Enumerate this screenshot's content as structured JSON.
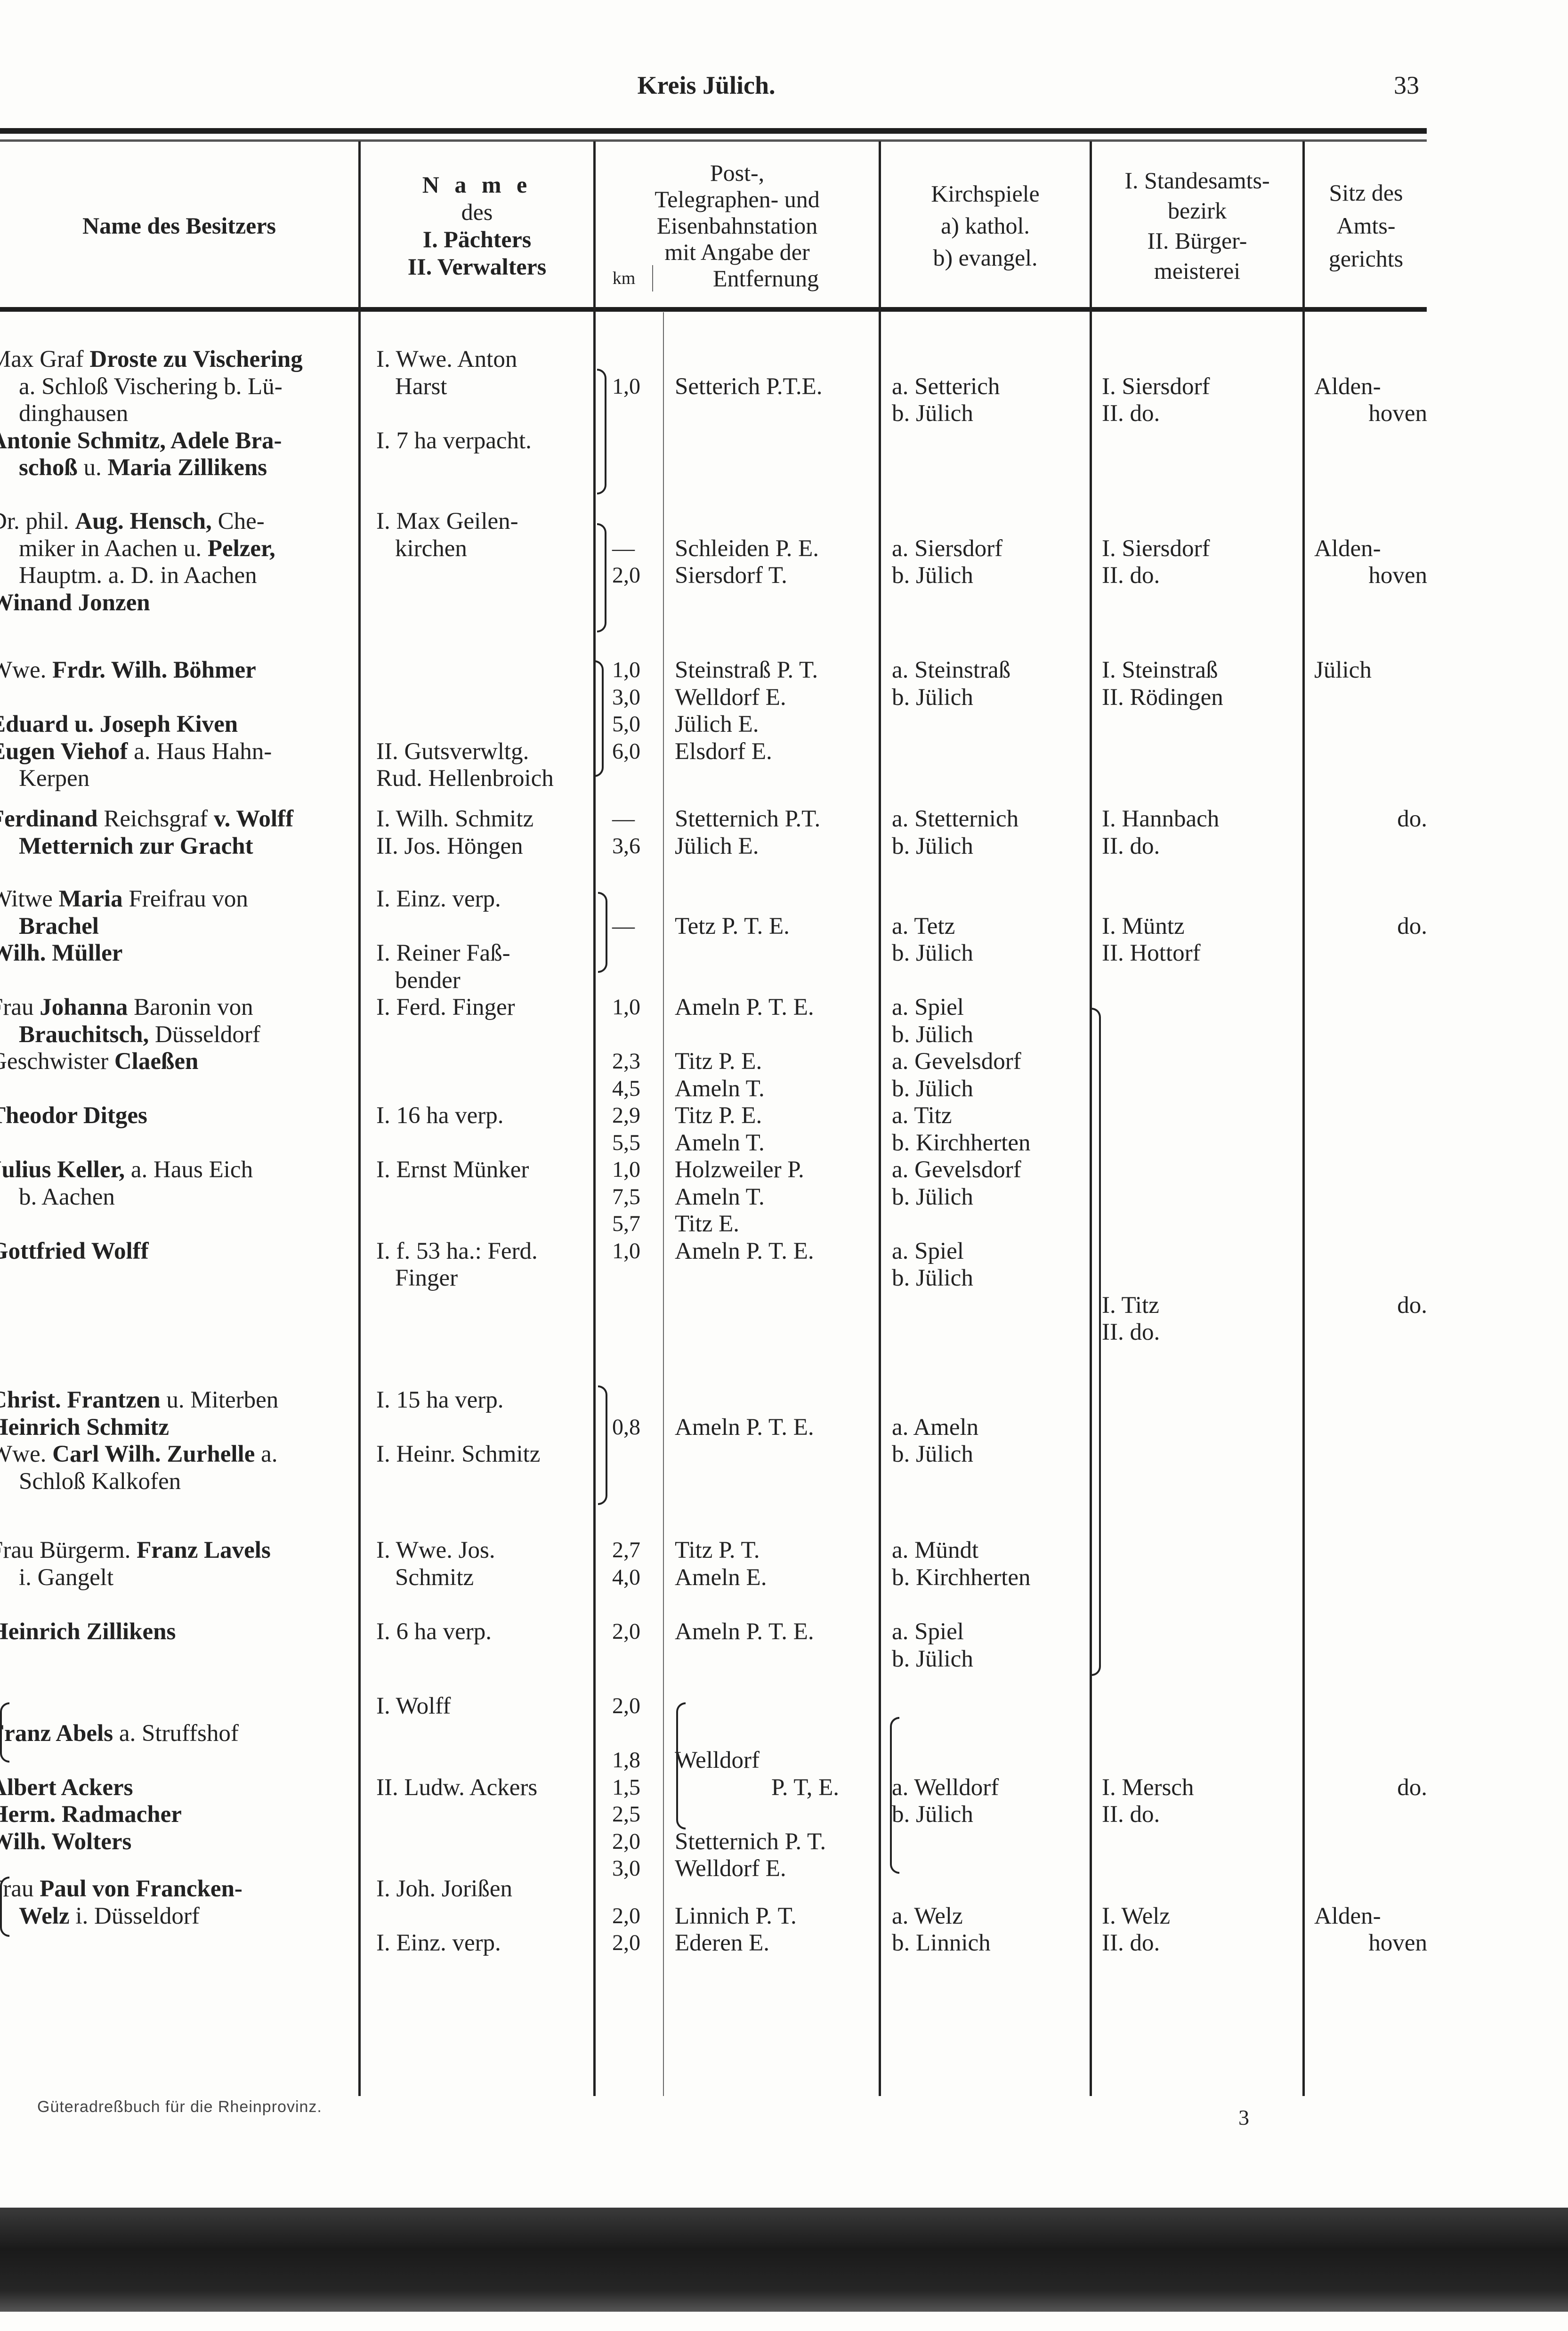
{
  "header": {
    "running_title": "Kreis Jülich.",
    "page_number": "33"
  },
  "columns": {
    "owner": [
      "Name des Besitzers"
    ],
    "tenant": [
      "N a m e",
      "des",
      "I. Pächters",
      "II. Verwalters"
    ],
    "station": [
      "Post-,",
      "Telegraphen- und",
      "Eisenbahnstation",
      "mit Angabe der"
    ],
    "station_km": "km",
    "station_distance": "Entfernung",
    "parish": [
      "Kirchspiele",
      "a) kathol.",
      "b) evangel."
    ],
    "registry": [
      "I. Standesamts-",
      "bezirk",
      "II. Bürger-",
      "meisterei"
    ],
    "court": [
      "Sitz des",
      "Amts-",
      "gerichts"
    ]
  },
  "rows": [
    {
      "owner": [
        [
          {
            "t": "Max "
          },
          {
            "t": "Graf "
          },
          {
            "t": "Droste zu Vischering",
            "b": true
          }
        ],
        [
          {
            "t": "a. Schloß Vischering b. Lü-"
          }
        ],
        [
          {
            "t": "dinghausen"
          }
        ],
        [
          {
            "t": "Antonie Schmitz, Adele Bra-",
            "b": true
          }
        ],
        [
          {
            "t": "schoß",
            "b": true
          },
          {
            "t": " u. "
          },
          {
            "t": "Maria Zillikens",
            "b": true
          }
        ]
      ],
      "tenant": [
        "I. Wwe. Anton",
        "Harst",
        "",
        "I. 7 ha verpacht."
      ],
      "km": [
        "",
        "1,0"
      ],
      "station": [
        "",
        "Setterich P.T.E."
      ],
      "parish": [
        "",
        "a. Setterich",
        "b. Jülich"
      ],
      "registry": [
        "",
        "I. Siersdorf",
        "II.    do."
      ],
      "court": [
        "",
        "Alden-",
        "hoven"
      ]
    },
    {
      "owner": [
        [
          {
            "t": "Dr. phil. "
          },
          {
            "t": "Aug. Hensch,",
            "b": true
          },
          {
            "t": " Che-"
          }
        ],
        [
          {
            "t": "miker in Aachen u. "
          },
          {
            "t": "Pelzer,",
            "b": true
          }
        ],
        [
          {
            "t": "Hauptm. a. D. in Aachen"
          }
        ],
        [
          {
            "t": "Winand Jonzen",
            "b": true
          }
        ]
      ],
      "tenant": [
        "I. Max Geilen-",
        "kirchen"
      ],
      "km": [
        "",
        "—",
        "2,0"
      ],
      "station": [
        "",
        "Schleiden P. E.",
        "Siersdorf T."
      ],
      "parish": [
        "",
        "a. Siersdorf",
        "b. Jülich"
      ],
      "registry": [
        "",
        "I. Siersdorf",
        "II.    do."
      ],
      "court": [
        "",
        "Alden-",
        "hoven"
      ]
    },
    {
      "owner": [
        [
          {
            "t": "Wwe. "
          },
          {
            "t": "Frdr. Wilh. Böhmer",
            "b": true
          }
        ],
        [],
        [
          {
            "t": "Eduard u. Joseph Kiven",
            "b": true
          }
        ],
        [
          {
            "t": "Eugen Viehof",
            "b": true
          },
          {
            "t": " a. Haus Hahn-"
          }
        ],
        [
          {
            "t": "Kerpen"
          }
        ]
      ],
      "tenant": [
        "",
        "",
        "",
        "II. Gutsverwltg.",
        "Rud. Hellenbroich"
      ],
      "km": [
        "1,0",
        "3,0",
        "5,0",
        "6,0"
      ],
      "station": [
        "Steinstraß P. T.",
        "Welldorf E.",
        "Jülich E.",
        "Elsdorf E."
      ],
      "parish": [
        "a. Steinstraß",
        "b. Jülich"
      ],
      "registry": [
        "I. Steinstraß",
        "II. Rödingen"
      ],
      "court": [
        "Jülich"
      ]
    },
    {
      "owner": [
        [
          {
            "t": "Ferdinand",
            "b": true
          },
          {
            "t": " Reichsgraf "
          },
          {
            "t": "v. Wolff",
            "b": true
          }
        ],
        [
          {
            "t": "Metternich zur Gracht",
            "b": true
          }
        ]
      ],
      "tenant": [
        "I. Wilh. Schmitz",
        "II. Jos. Höngen"
      ],
      "km": [
        "—",
        "3,6"
      ],
      "station": [
        "Stetternich P.T.",
        "Jülich E."
      ],
      "parish": [
        "a. Stetternich",
        "b. Jülich"
      ],
      "registry": [
        "I. Hannbach",
        "II.    do."
      ],
      "court": [
        "do."
      ]
    },
    {
      "owner": [
        [
          {
            "t": "Witwe "
          },
          {
            "t": "Maria",
            "b": true
          },
          {
            "t": " Freifrau von"
          }
        ],
        [
          {
            "t": "Brachel",
            "b": true
          }
        ],
        [
          {
            "t": "Wilh. Müller",
            "b": true
          }
        ]
      ],
      "tenant": [
        "I. Einz. verp.",
        "",
        "I. Reiner Faß-",
        "bender"
      ],
      "km": [
        "",
        "—"
      ],
      "station": [
        "",
        "Tetz P. T. E."
      ],
      "parish": [
        "",
        "a. Tetz",
        "b. Jülich"
      ],
      "registry": [
        "",
        "I. Müntz",
        "II. Hottorf"
      ],
      "court": [
        "",
        "do."
      ]
    },
    {
      "owner": [
        [
          {
            "t": "Frau "
          },
          {
            "t": "Johanna",
            "b": true
          },
          {
            "t": " Baronin von"
          }
        ],
        [
          {
            "t": "Brauchitsch,",
            "b": true
          },
          {
            "t": " Düsseldorf"
          }
        ],
        [
          {
            "t": "Geschwister "
          },
          {
            "t": "Claeßen",
            "b": true
          }
        ],
        [],
        [
          {
            "t": "Theodor Ditges",
            "b": true
          }
        ],
        [],
        [
          {
            "t": "Julius Keller,",
            "b": true
          },
          {
            "t": " a. Haus Eich"
          }
        ],
        [
          {
            "t": "b. Aachen"
          }
        ],
        [],
        [
          {
            "t": "Gottfried Wolff",
            "b": true
          }
        ]
      ],
      "tenant": [
        "I. Ferd. Finger",
        "",
        "",
        "",
        "I. 16 ha verp.",
        "",
        "I. Ernst Münker",
        "",
        "",
        "I. f. 53 ha.: Ferd.",
        "Finger"
      ],
      "km": [
        "1,0",
        "",
        "2,3",
        "4,5",
        "2,9",
        "5,5",
        "1,0",
        "7,5",
        "5,7",
        "1,0"
      ],
      "station": [
        "Ameln P. T. E.",
        "",
        "Titz P. E.",
        "Ameln T.",
        "Titz P. E.",
        "Ameln T.",
        "Holzweiler P.",
        "Ameln T.",
        "Titz E.",
        "Ameln P. T. E."
      ],
      "parish": [
        "a. Spiel",
        "b. Jülich",
        "a. Gevelsdorf",
        "b. Jülich",
        "a. Titz",
        "b. Kirchherten",
        "a. Gevelsdorf",
        "b. Jülich",
        "",
        "a. Spiel",
        "b. Jülich"
      ],
      "registry": [
        "",
        "",
        "",
        "",
        "",
        "",
        "",
        "",
        "",
        "",
        "",
        "I. Titz",
        "II. do."
      ],
      "court": [
        "",
        "",
        "",
        "",
        "",
        "",
        "",
        "",
        "",
        "",
        "",
        "do."
      ]
    },
    {
      "owner": [
        [
          {
            "t": "Christ. Frantzen",
            "b": true
          },
          {
            "t": " u. Miterben"
          }
        ],
        [
          {
            "t": "Heinrich Schmitz",
            "b": true
          }
        ],
        [
          {
            "t": "Wwe. "
          },
          {
            "t": "Carl Wilh. Zurhelle",
            "b": true
          },
          {
            "t": " a."
          }
        ],
        [
          {
            "t": "Schloß Kalkofen"
          }
        ]
      ],
      "tenant": [
        "I. 15 ha verp.",
        "",
        "I. Heinr. Schmitz"
      ],
      "km": [
        "",
        "0,8"
      ],
      "station": [
        "",
        "Ameln P. T. E."
      ],
      "parish": [
        "",
        "a. Ameln",
        "b. Jülich"
      ],
      "registry": [],
      "court": []
    },
    {
      "owner": [
        [
          {
            "t": "Frau Bürgerm. "
          },
          {
            "t": "Franz Lavels",
            "b": true
          }
        ],
        [
          {
            "t": "i. Gangelt"
          }
        ]
      ],
      "tenant": [
        "I. Wwe. Jos.",
        "Schmitz"
      ],
      "km": [
        "2,7",
        "4,0"
      ],
      "station": [
        "Titz P. T.",
        "Ameln E."
      ],
      "parish": [
        "a. Mündt",
        "b. Kirchherten"
      ],
      "registry": [],
      "court": []
    },
    {
      "owner": [
        [
          {
            "t": "Heinrich Zillikens",
            "b": true
          }
        ]
      ],
      "tenant": [
        "I. 6 ha verp."
      ],
      "km": [
        "2,0"
      ],
      "station": [
        "Ameln P. T. E."
      ],
      "parish": [
        "a. Spiel",
        "b. Jülich"
      ],
      "registry": [],
      "court": []
    },
    {
      "owner": [
        [],
        [
          {
            "t": "Franz Abels",
            "b": true
          },
          {
            "t": " a. Struffshof"
          }
        ],
        [],
        [
          {
            "t": "Albert Ackers",
            "b": true
          }
        ],
        [
          {
            "t": "Herm. Radmacher",
            "b": true
          }
        ],
        [
          {
            "t": "Wilh. Wolters",
            "b": true
          }
        ]
      ],
      "tenant": [
        "I. Wolff",
        "",
        "",
        "II. Ludw. Ackers"
      ],
      "km": [
        "2,0",
        "",
        "1,8",
        "1,5",
        "2,5",
        "2,0",
        "3,0"
      ],
      "station": [
        "",
        "",
        "Welldorf",
        "P. T, E.",
        "",
        "Stetternich P. T.",
        "Welldorf E."
      ],
      "parish": [
        "",
        "",
        "",
        "a. Welldorf",
        "b. Jülich"
      ],
      "registry": [
        "",
        "",
        "",
        "I. Mersch",
        "II.  do."
      ],
      "court": [
        "",
        "",
        "",
        "do."
      ]
    },
    {
      "owner": [
        [
          {
            "t": "Frau "
          },
          {
            "t": "Paul von Francken-",
            "b": true
          }
        ],
        [
          {
            "t": "Welz",
            "b": true
          },
          {
            "t": " i. Düsseldorf"
          }
        ]
      ],
      "tenant": [
        "I. Joh. Jorißen",
        "",
        "I. Einz. verp."
      ],
      "km": [
        "",
        "2,0",
        "2,0"
      ],
      "station": [
        "",
        "Linnich P. T.",
        "Ederen E."
      ],
      "parish": [
        "",
        "a. Welz",
        "b. Linnich"
      ],
      "registry": [
        "",
        "I. Welz",
        "II.  do."
      ],
      "court": [
        "",
        "Alden-",
        "hoven"
      ]
    }
  ],
  "footer": {
    "note": "Güteradreßbuch für die Rheinprovinz.",
    "signature": "3"
  }
}
